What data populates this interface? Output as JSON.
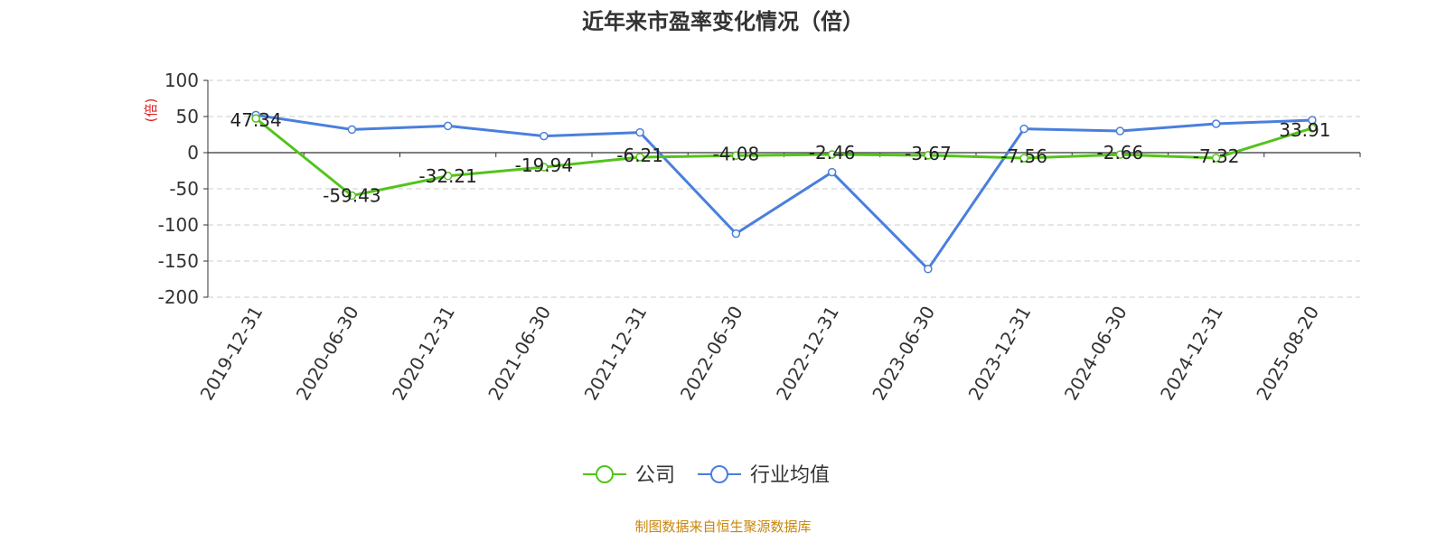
{
  "chart_data": {
    "type": "line",
    "title": "近年来市盈率变化情况（倍）",
    "ylabel": "(倍)",
    "xlabel": "",
    "categories": [
      "2019-12-31",
      "2020-06-30",
      "2020-12-31",
      "2021-06-30",
      "2021-12-31",
      "2022-06-30",
      "2022-12-31",
      "2023-06-30",
      "2023-12-31",
      "2024-06-30",
      "2024-12-31",
      "2025-08-20"
    ],
    "ylim": [
      -200,
      100
    ],
    "yticks": [
      100,
      50,
      0,
      -50,
      -100,
      -150,
      -200
    ],
    "grid": true,
    "legend_position": "bottom",
    "series": [
      {
        "name": "公司",
        "color": "#52c41a",
        "show_labels": true,
        "values": [
          47.34,
          -59.43,
          -32.21,
          -19.94,
          -6.21,
          -4.08,
          -2.46,
          -3.67,
          -7.56,
          -2.66,
          -7.32,
          33.91
        ],
        "labels": [
          "47.34",
          "-59.43",
          "-32.21",
          "-19.94",
          "-6.21",
          "-4.08",
          "-2.46",
          "-3.67",
          "-7.56",
          "-2.66",
          "-7.32",
          "33.91"
        ]
      },
      {
        "name": "行业均值",
        "color": "#4a7fdc",
        "show_labels": false,
        "values": [
          52,
          32,
          37,
          23,
          28,
          -112,
          -27,
          -161,
          33,
          30,
          40,
          45
        ]
      }
    ]
  },
  "footer": {
    "source": "制图数据来自恒生聚源数据库"
  }
}
